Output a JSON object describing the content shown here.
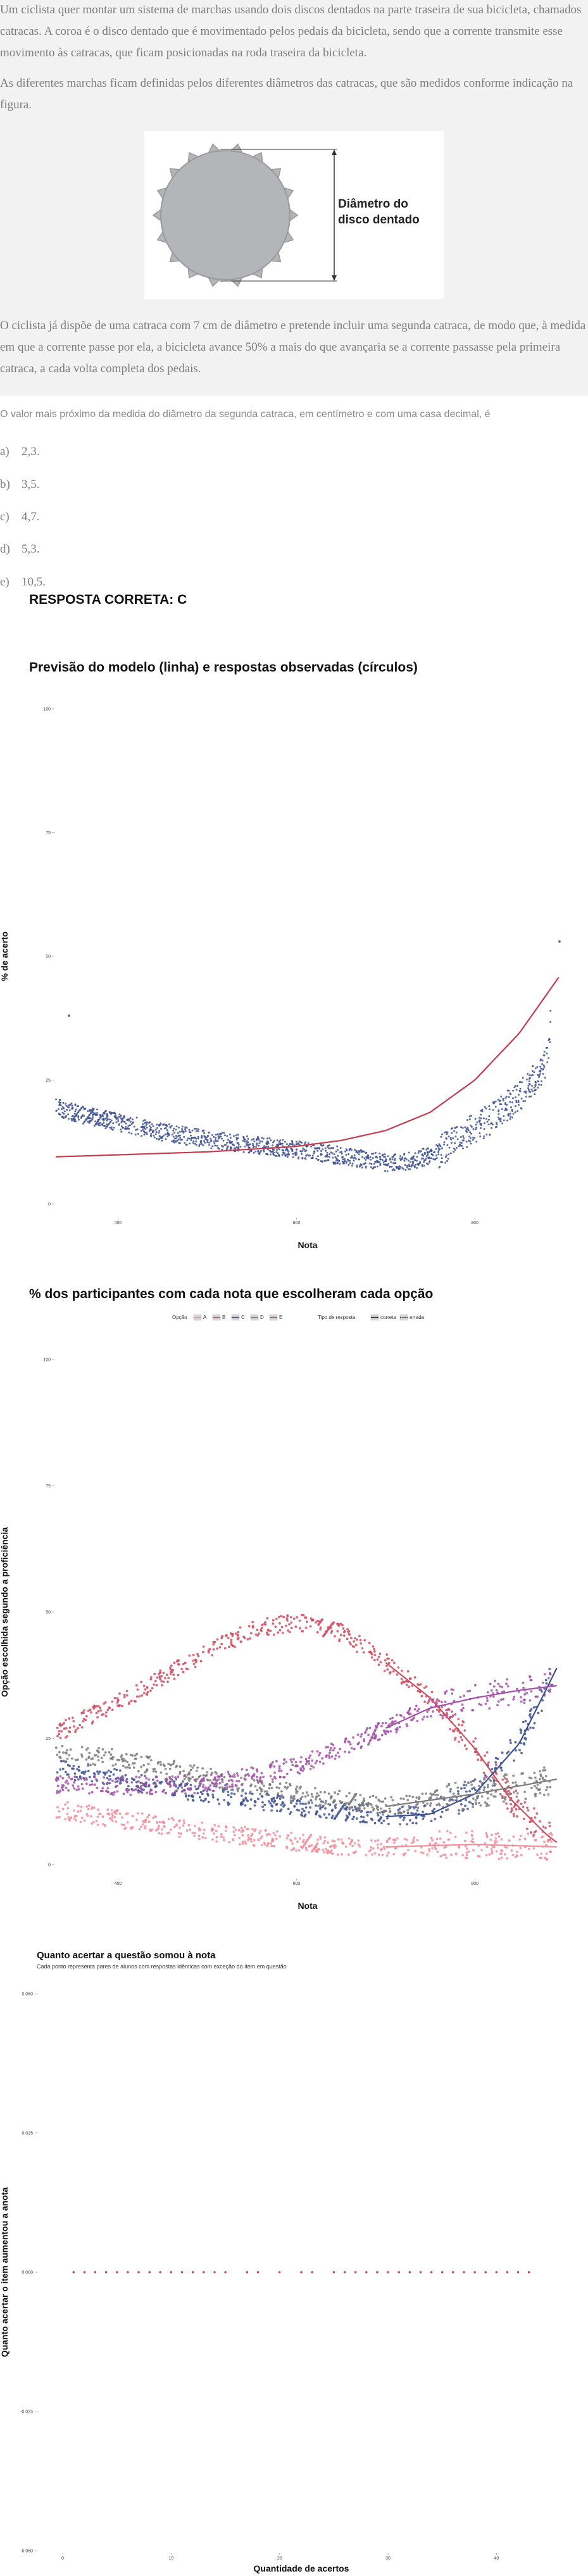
{
  "question": {
    "paragraphs": [
      "Um ciclista quer montar um sistema de marchas usando dois discos dentados na parte traseira de sua bicicleta, chamados catracas. A coroa é o disco dentado que é movimentado pelos pedais da bicicleta, sendo que a corrente transmite esse movimento às catracas, que ficam posicionadas na roda traseira da bicicleta.",
      "As diferentes marchas ficam definidas pelos diferentes diâmetros das catracas, que são medidos conforme indicação na figura.",
      "O ciclista já dispõe de uma catraca com 7 cm de diâmetro e pretende incluir uma segunda catraca, de modo que, à medida em que a corrente passe por ela, a bicicleta avance 50% a mais do que avançaria se a corrente passasse pela primeira catraca, a cada volta completa dos pedais."
    ],
    "figure_label_line1": "Diâmetro do",
    "figure_label_line2": "disco dentado",
    "stem": "O valor mais próximo da medida do diâmetro da segunda catraca, em centímetro e com uma casa decimal, é",
    "alternatives": [
      {
        "letter": "a)",
        "text": "2,3."
      },
      {
        "letter": "b)",
        "text": "3,5."
      },
      {
        "letter": "c)",
        "text": "4,7."
      },
      {
        "letter": "d)",
        "text": "5,3."
      },
      {
        "letter": "e)",
        "text": "10,5."
      }
    ],
    "answer": "RESPOSTA CORRETA: C"
  },
  "colors": {
    "panel": "#f1f2f1",
    "navy": "#3e5290",
    "model": "#c63b4d",
    "A": "#f28e9c",
    "B": "#cf4f61",
    "C": "#3e5290",
    "D": "#7c7c7c",
    "E": "#a251a6"
  },
  "chart_data": [
    {
      "type": "scatter",
      "title": "Previsão do modelo (linha) e respostas observadas (círculos)",
      "xlabel": "Nota",
      "ylabel": "% de acerto",
      "x_ticks": [
        "400",
        "600",
        "800"
      ],
      "y_ticks": [
        "0",
        "25",
        "50",
        "75",
        "100"
      ],
      "xlim": [
        330,
        895
      ],
      "ylim": [
        0,
        100
      ],
      "model_line": {
        "x": [
          330,
          400,
          500,
          600,
          650,
          700,
          750,
          800,
          850,
          895
        ],
        "y": [
          9.5,
          9.9,
          10.5,
          11.6,
          12.8,
          14.8,
          18.5,
          25,
          34.5,
          46
        ]
      },
      "observed": {
        "x": [
          330,
          360,
          400,
          450,
          500,
          550,
          600,
          650,
          700,
          730,
          760,
          790,
          820,
          850,
          880,
          895
        ],
        "y": [
          19.5,
          18,
          16.5,
          14.5,
          13,
          12,
          11,
          9.7,
          8.3,
          8.7,
          10.5,
          14,
          17.5,
          21.5,
          28,
          53
        ]
      },
      "outlier": {
        "x": 345,
        "y": 38
      }
    },
    {
      "type": "scatter",
      "title": "% dos participantes com cada nota que escolheram cada opção",
      "xlabel": "Nota",
      "ylabel": "Opção escolhida segundo a proficiência",
      "x_ticks": [
        "400",
        "600",
        "800"
      ],
      "y_ticks": [
        "0",
        "25",
        "50",
        "75",
        "100"
      ],
      "xlim": [
        330,
        895
      ],
      "ylim": [
        0,
        100
      ],
      "legend": {
        "option_title": "Opção",
        "options": [
          "A",
          "B",
          "C",
          "D",
          "E"
        ],
        "type_title": "Tipo de resposta",
        "types": [
          "correta",
          "errada"
        ]
      },
      "series": [
        {
          "name": "A",
          "x": [
            330,
            400,
            500,
            600,
            650,
            700,
            800,
            895
          ],
          "y": [
            11,
            9,
            6.5,
            4.5,
            3.5,
            3.5,
            4,
            3.5
          ]
        },
        {
          "name": "B",
          "x": [
            330,
            400,
            500,
            550,
            600,
            650,
            700,
            750,
            800,
            840,
            880,
            895
          ],
          "y": [
            26,
            32,
            42,
            46.5,
            48,
            46,
            40,
            33,
            23,
            13,
            6,
            4
          ]
        },
        {
          "name": "C",
          "x": [
            330,
            400,
            500,
            600,
            700,
            750,
            800,
            850,
            895
          ],
          "y": [
            19,
            17,
            14,
            11.5,
            9.5,
            10,
            14,
            24,
            40
          ]
        },
        {
          "name": "D",
          "x": [
            330,
            400,
            500,
            600,
            700,
            800,
            895
          ],
          "y": [
            22,
            21,
            17.5,
            14,
            11.5,
            14,
            17
          ]
        },
        {
          "name": "E",
          "x": [
            330,
            400,
            500,
            600,
            650,
            700,
            750,
            800,
            850,
            895
          ],
          "y": [
            16,
            15.5,
            16,
            19.5,
            23,
            27,
            31,
            33,
            34.5,
            35.5
          ]
        }
      ]
    },
    {
      "type": "scatter",
      "title": "Quanto acertar a questão somou à nota",
      "subtitle": "Cada ponto representa pares de alunos com respostas idênticas com exceção do item em questão",
      "xlabel": "Quantidade de acertos",
      "ylabel": "Quanto acertar o item aumentou a anota",
      "x_ticks": [
        "0",
        "10",
        "20",
        "30",
        "40"
      ],
      "y_ticks": [
        "-0.050",
        "-0.025",
        "0.000",
        "0.025",
        "0.050"
      ],
      "xlim": [
        -1,
        45
      ],
      "ylim": [
        -0.05,
        0.05
      ],
      "points": {
        "x": [
          1,
          2,
          3,
          4,
          5,
          6,
          7,
          8,
          9,
          10,
          11,
          12,
          13,
          14,
          15,
          17,
          18,
          20,
          22,
          23,
          25,
          26,
          27,
          28,
          29,
          30,
          31,
          32,
          33,
          34,
          35,
          36,
          37,
          38,
          39,
          40,
          41,
          42,
          43
        ],
        "y": [
          0,
          0,
          0,
          0,
          0,
          0,
          0,
          0,
          0,
          0,
          0,
          0,
          0,
          0,
          0,
          0,
          0,
          0,
          0,
          0,
          0,
          0,
          0,
          0,
          0,
          0,
          0,
          0,
          0,
          0,
          0,
          0,
          0,
          0,
          0,
          0,
          0,
          0,
          0
        ]
      }
    }
  ]
}
